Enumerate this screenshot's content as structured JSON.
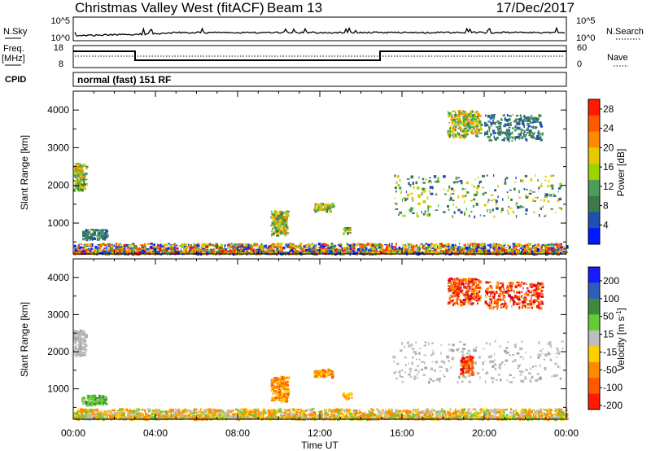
{
  "header": {
    "station": "Christmas Valley West (fitACF)",
    "beam": "Beam 13",
    "date": "17/Dec/2017"
  },
  "top_panels": {
    "nsky_label": "N.Sky",
    "nsky_ticks": [
      "10^5",
      "10^0"
    ],
    "nsearch_label": "N.Search",
    "nsearch_ticks": [
      "10^5",
      "10^0"
    ],
    "freq_label": "Freq.",
    "freq_unit": "[MHz]",
    "freq_ticks": [
      "18",
      "8"
    ],
    "nave_label": "Nave",
    "nave_ticks": [
      "60",
      "0"
    ],
    "cpid_label": "CPID",
    "cpid_text": "normal (fast) 151 RF"
  },
  "colors": {
    "power_scale": [
      "#0018ff",
      "#1f4fb0",
      "#3d7a4a",
      "#4a9e55",
      "#9cd400",
      "#e8c800",
      "#ff8a00",
      "#ff5a00",
      "#ff1a00"
    ],
    "velocity_scale": [
      "#1a1aff",
      "#2e5fb8",
      "#3d8a3d",
      "#66cc33",
      "#bdbdbd",
      "#ffd000",
      "#ff8a00",
      "#ff5a00",
      "#ff1a00"
    ],
    "ground_scatter": "#bdbdbd"
  },
  "chart_data": [
    {
      "type": "heatmap",
      "name": "power",
      "xlabel": "",
      "ylabel": "Slant Range [km]",
      "xlim": [
        0,
        24
      ],
      "ylim": [
        180,
        4500
      ],
      "x_ticks": [
        "00:00",
        "04:00",
        "08:00",
        "12:00",
        "16:00",
        "20:00",
        "00:00"
      ],
      "y_ticks": [
        1000,
        2000,
        3000,
        4000
      ],
      "colorbar": {
        "label": "Power [dB]",
        "ticks": [
          "4",
          "8",
          "12",
          "16",
          "20",
          "24",
          "28"
        ],
        "range": [
          0,
          30
        ]
      },
      "echo_regions": [
        {
          "t0": 0.0,
          "t1": 24.0,
          "r0": 220,
          "r1": 480,
          "level": "mixed-strong"
        },
        {
          "t0": 0.0,
          "t1": 0.6,
          "r0": 1900,
          "r1": 2600,
          "level": "moderate"
        },
        {
          "t0": 0.4,
          "t1": 1.6,
          "r0": 600,
          "r1": 850,
          "level": "weak"
        },
        {
          "t0": 9.6,
          "t1": 10.4,
          "r0": 700,
          "r1": 1350,
          "level": "moderate"
        },
        {
          "t0": 11.7,
          "t1": 12.6,
          "r0": 1350,
          "r1": 1550,
          "level": "moderate"
        },
        {
          "t0": 13.1,
          "t1": 13.5,
          "r0": 750,
          "r1": 900,
          "level": "moderate"
        },
        {
          "t0": 15.5,
          "t1": 23.8,
          "r0": 1200,
          "r1": 2300,
          "level": "weak-moderate"
        },
        {
          "t0": 18.2,
          "t1": 19.8,
          "r0": 3300,
          "r1": 4000,
          "level": "moderate"
        },
        {
          "t0": 20.0,
          "t1": 22.8,
          "r0": 3200,
          "r1": 3900,
          "level": "weak"
        }
      ]
    },
    {
      "type": "heatmap",
      "name": "velocity",
      "xlabel": "Time UT",
      "ylabel": "Slant Range [km]",
      "xlim": [
        0,
        24
      ],
      "ylim": [
        180,
        4500
      ],
      "x_ticks": [
        "00:00",
        "04:00",
        "08:00",
        "12:00",
        "16:00",
        "20:00",
        "00:00"
      ],
      "y_ticks": [
        1000,
        2000,
        3000,
        4000
      ],
      "colorbar": {
        "label": "Velocity [m s^-1]",
        "ticks": [
          "200",
          "100",
          "50",
          "15",
          "-15",
          "-50",
          "-100",
          "-200"
        ],
        "range": [
          -250,
          250
        ]
      },
      "echo_regions": [
        {
          "t0": 0.0,
          "t1": 24.0,
          "r0": 220,
          "r1": 480,
          "level": "-50 to 15"
        },
        {
          "t0": 0.0,
          "t1": 0.6,
          "r0": 1900,
          "r1": 2600,
          "level": "ground"
        },
        {
          "t0": 0.4,
          "t1": 1.6,
          "r0": 600,
          "r1": 850,
          "level": "15 to 50"
        },
        {
          "t0": 9.6,
          "t1": 10.4,
          "r0": 700,
          "r1": 1350,
          "level": "-50 to -100"
        },
        {
          "t0": 11.7,
          "t1": 12.6,
          "r0": 1350,
          "r1": 1550,
          "level": "-50 to -100"
        },
        {
          "t0": 13.1,
          "t1": 13.5,
          "r0": 750,
          "r1": 900,
          "level": "-50"
        },
        {
          "t0": 15.5,
          "t1": 23.8,
          "r0": 1200,
          "r1": 2300,
          "level": "ground"
        },
        {
          "t0": 18.8,
          "t1": 19.4,
          "r0": 1400,
          "r1": 1900,
          "level": "-100 to -200"
        },
        {
          "t0": 18.2,
          "t1": 19.8,
          "r0": 3300,
          "r1": 4000,
          "level": "-100 to -200"
        },
        {
          "t0": 20.0,
          "t1": 22.8,
          "r0": 3200,
          "r1": 3900,
          "level": "-100 to -200"
        }
      ]
    }
  ]
}
